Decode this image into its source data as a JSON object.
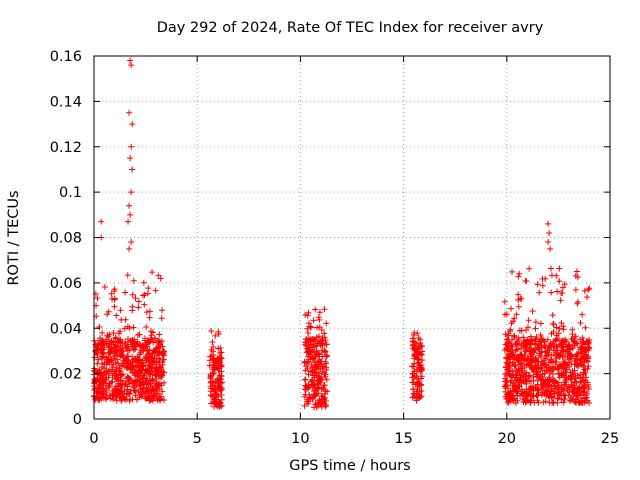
{
  "chart_data": {
    "type": "scatter",
    "title": "Day 292 of 2024, Rate Of TEC Index for receiver avry",
    "xlabel": "GPS time / hours",
    "ylabel": "ROTI / TECUs",
    "xlim": [
      0,
      25
    ],
    "ylim": [
      0,
      0.16
    ],
    "xticks": [
      0,
      5,
      10,
      15,
      20,
      25
    ],
    "yticks": [
      0,
      0.02,
      0.04,
      0.06,
      0.08,
      0.1,
      0.12,
      0.14,
      0.16
    ],
    "ytick_labels": [
      "0",
      "0.02",
      "0.04",
      "0.06",
      "0.08",
      "0.1",
      "0.12",
      "0.14",
      "0.16"
    ],
    "grid": true,
    "marker": "+",
    "color": "#ff0000",
    "series": [
      {
        "name": "ROTI",
        "clusters": [
          {
            "x": [
              0.0,
              3.4
            ],
            "y_typical": [
              0.008,
              0.035
            ],
            "y_max": 0.065
          },
          {
            "x": [
              5.6,
              6.2
            ],
            "y_typical": [
              0.005,
              0.027
            ],
            "y_max": 0.039
          },
          {
            "x": [
              10.2,
              11.3
            ],
            "y_typical": [
              0.005,
              0.035
            ],
            "y_max": 0.049
          },
          {
            "x": [
              15.4,
              15.9
            ],
            "y_typical": [
              0.008,
              0.033
            ],
            "y_max": 0.039
          },
          {
            "x": [
              19.9,
              24.0
            ],
            "y_typical": [
              0.007,
              0.035
            ],
            "y_max": 0.067
          }
        ],
        "outliers": [
          {
            "x": 1.75,
            "y": 0.158
          },
          {
            "x": 1.8,
            "y": 0.156
          },
          {
            "x": 1.7,
            "y": 0.135
          },
          {
            "x": 1.85,
            "y": 0.13
          },
          {
            "x": 1.8,
            "y": 0.12
          },
          {
            "x": 1.75,
            "y": 0.115
          },
          {
            "x": 1.85,
            "y": 0.11
          },
          {
            "x": 1.8,
            "y": 0.1
          },
          {
            "x": 1.7,
            "y": 0.094
          },
          {
            "x": 1.75,
            "y": 0.09
          },
          {
            "x": 1.65,
            "y": 0.087
          },
          {
            "x": 0.35,
            "y": 0.087
          },
          {
            "x": 0.35,
            "y": 0.08
          },
          {
            "x": 1.8,
            "y": 0.078
          },
          {
            "x": 1.7,
            "y": 0.075
          },
          {
            "x": 22.0,
            "y": 0.086
          },
          {
            "x": 22.05,
            "y": 0.082
          },
          {
            "x": 22.0,
            "y": 0.078
          },
          {
            "x": 22.1,
            "y": 0.075
          },
          {
            "x": 23.95,
            "y": 0.057
          },
          {
            "x": 0.1,
            "y": 0.05
          },
          {
            "x": 20.6,
            "y": 0.064
          },
          {
            "x": 23.4,
            "y": 0.065
          }
        ]
      }
    ]
  }
}
